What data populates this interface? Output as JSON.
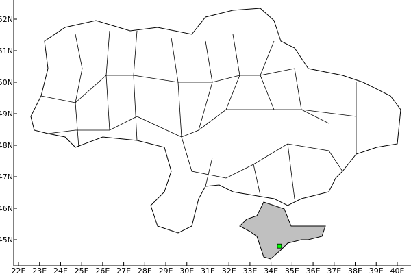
{
  "map": {
    "x_ticks": [
      "22E",
      "23E",
      "24E",
      "25E",
      "26E",
      "27E",
      "28E",
      "29E",
      "30E",
      "31E",
      "32E",
      "33E",
      "34E",
      "35E",
      "36E",
      "37E",
      "38E",
      "39E",
      "40E"
    ],
    "x_tick_values": [
      22,
      23,
      24,
      25,
      26,
      27,
      28,
      29,
      30,
      31,
      32,
      33,
      34,
      35,
      36,
      37,
      38,
      39,
      40
    ],
    "y_ticks": [
      "45N",
      "46N",
      "47N",
      "48N",
      "49N",
      "50N",
      "51N",
      "52N"
    ],
    "y_tick_values": [
      45,
      46,
      47,
      48,
      49,
      50,
      51,
      52
    ],
    "highlighted_region_color": "#c0c0c0",
    "marker": {
      "lon": 34.4,
      "lat": 44.8,
      "color": "#00ff00"
    },
    "boundary_color": "#000000"
  }
}
